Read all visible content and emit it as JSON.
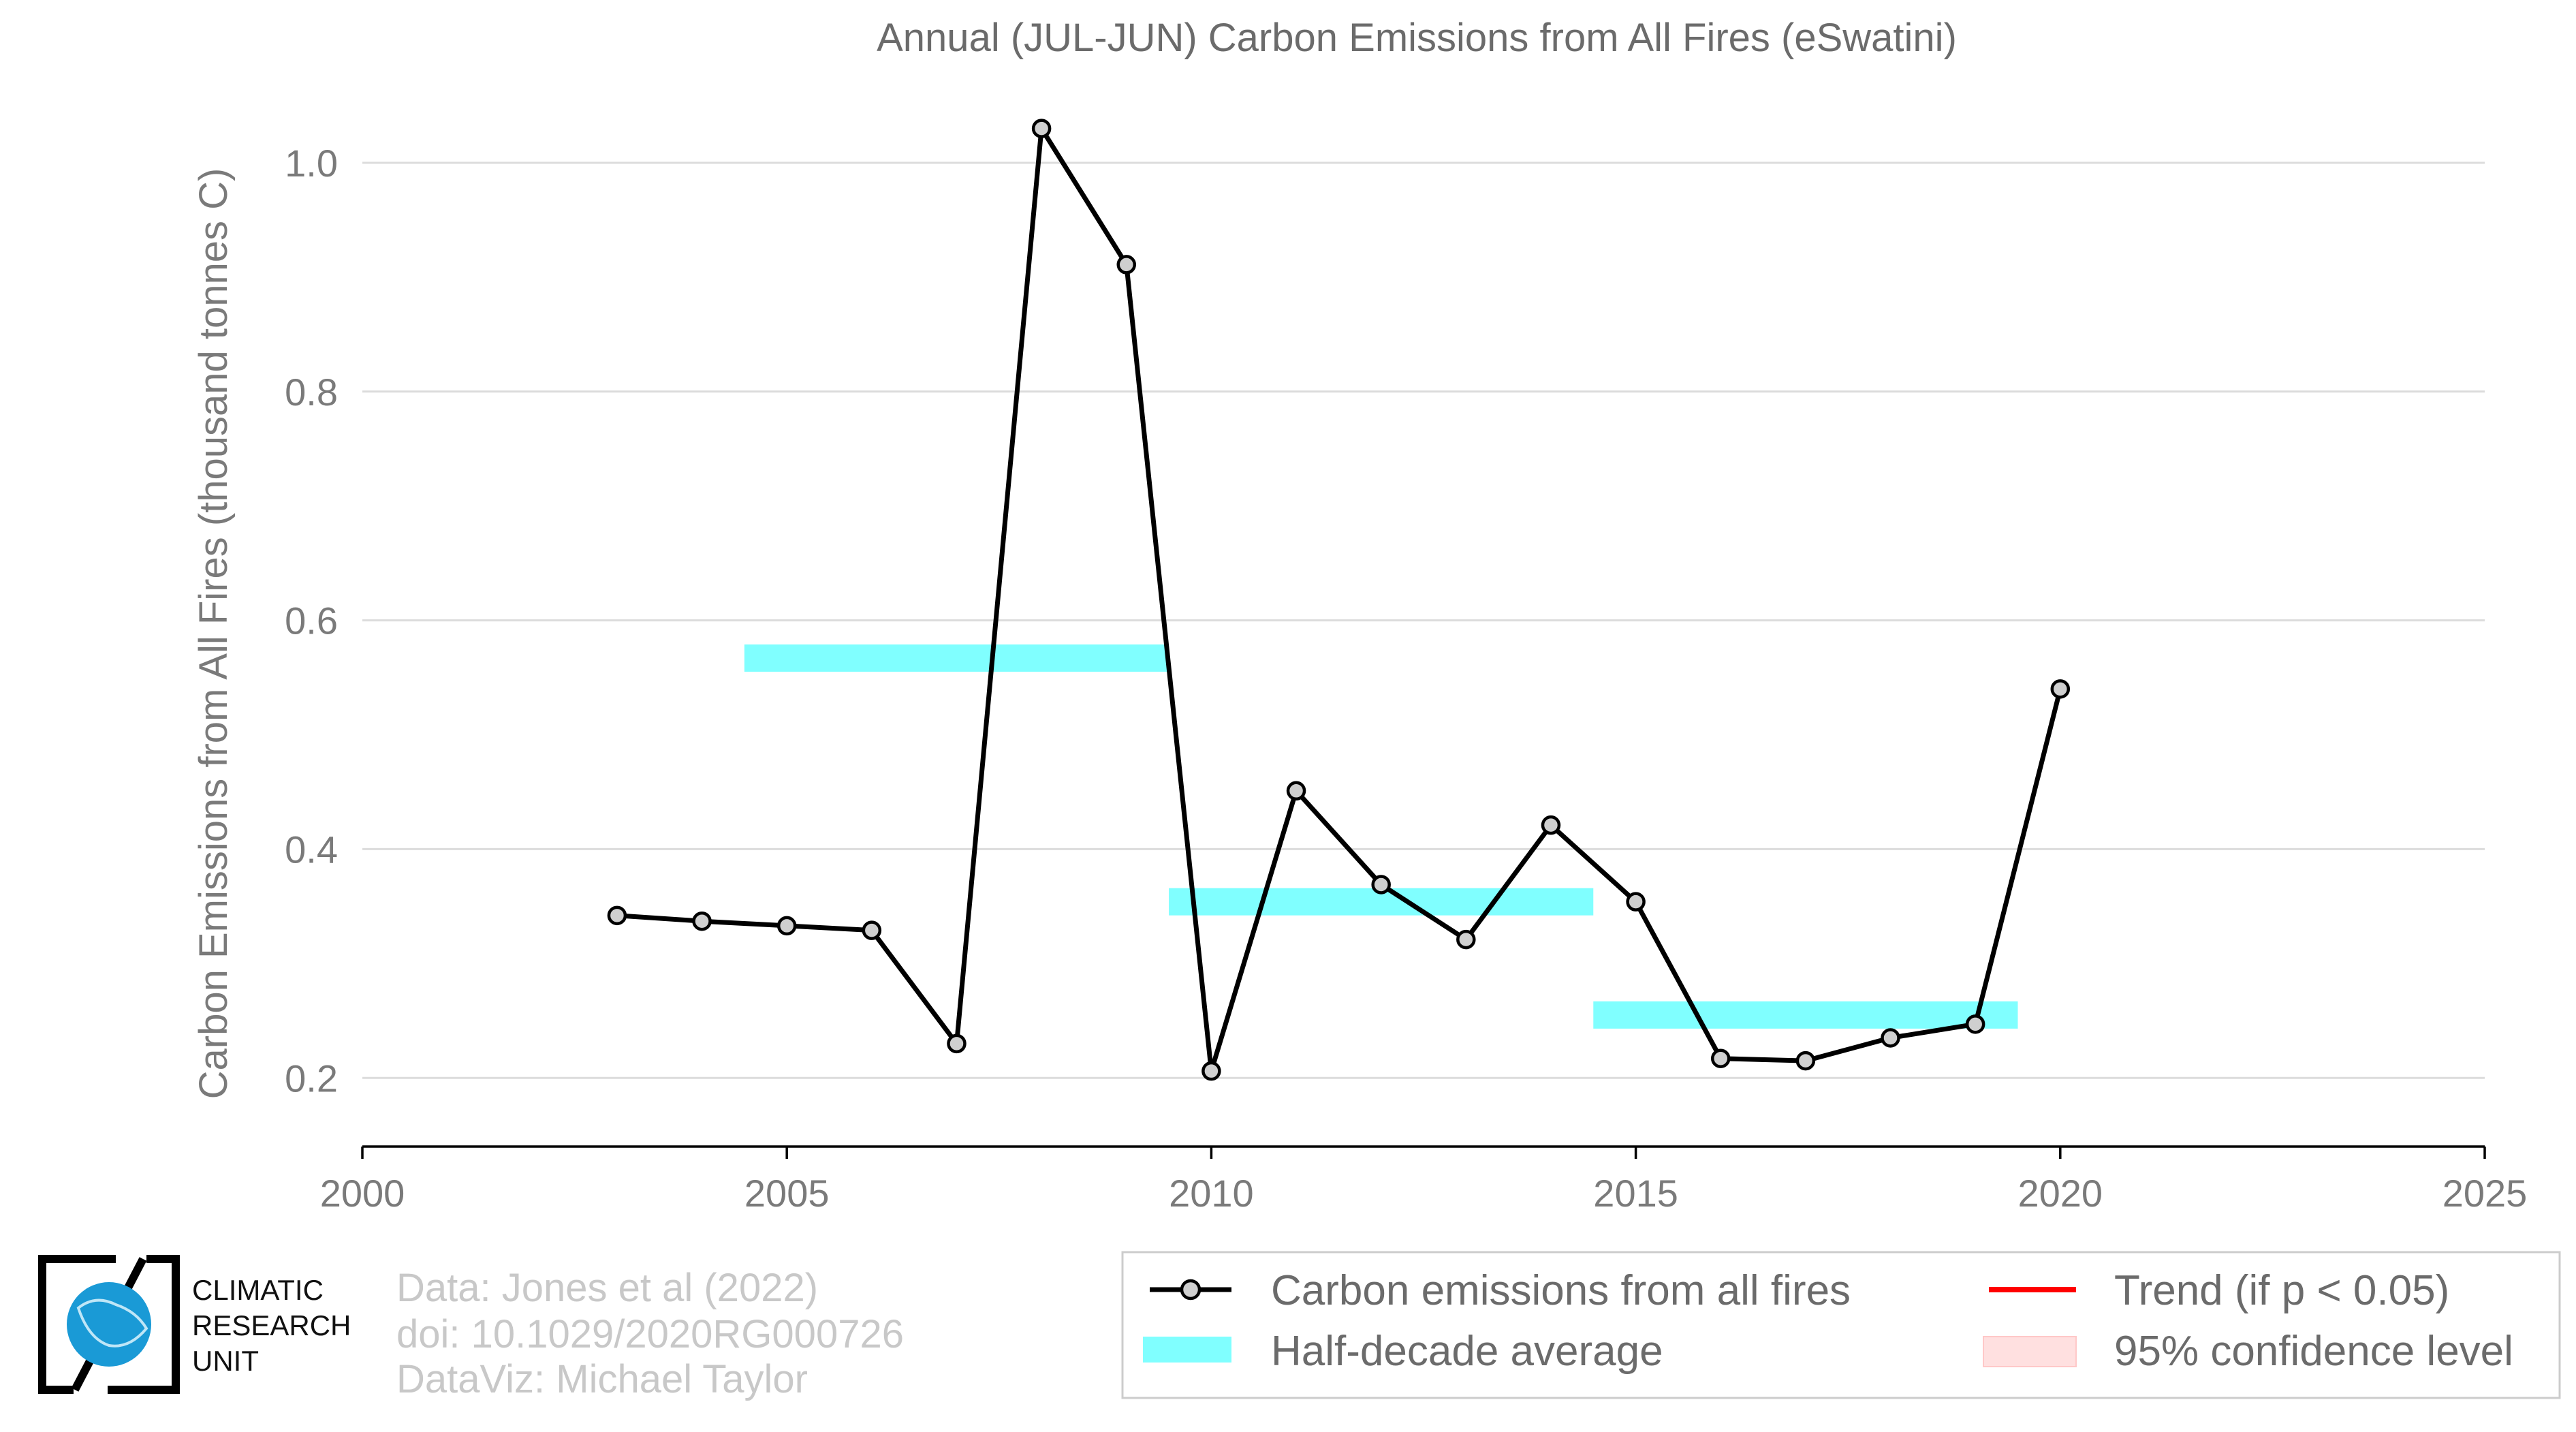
{
  "chart_data": {
    "type": "line",
    "title": "Annual (JUL-JUN) Carbon Emissions from All Fires (eSwatini)",
    "xlabel": "",
    "ylabel": "Carbon Emissions from All Fires (thousand tonnes C)",
    "xlim": [
      2000,
      2025
    ],
    "ylim": [
      0.14,
      1.05
    ],
    "xticks": [
      2000,
      2005,
      2010,
      2015,
      2020,
      2025
    ],
    "xtick_labels": [
      "2000",
      "2005",
      "2010",
      "2015",
      "2020",
      "2025"
    ],
    "yticks": [
      0.2,
      0.4,
      0.6,
      0.8,
      1.0
    ],
    "ytick_labels": [
      "0.2",
      "0.4",
      "0.6",
      "0.8",
      "1.0"
    ],
    "grid": "horizontal",
    "series": [
      {
        "name": "Carbon emissions from all fires",
        "color": "#000000",
        "x": [
          2003,
          2004,
          2005,
          2006,
          2007,
          2008,
          2009,
          2010,
          2011,
          2012,
          2013,
          2014,
          2015,
          2016,
          2017,
          2018,
          2019,
          2020
        ],
        "y": [
          0.342,
          0.337,
          0.333,
          0.329,
          0.23,
          1.03,
          0.911,
          0.206,
          0.451,
          0.369,
          0.321,
          0.421,
          0.354,
          0.217,
          0.215,
          0.235,
          0.247,
          0.54
        ]
      }
    ],
    "half_decade_average": {
      "name": "Half-decade average",
      "color": "#80ffff",
      "segments": [
        {
          "x0": 2004.5,
          "x1": 2009.5,
          "y": 0.567
        },
        {
          "x0": 2009.5,
          "x1": 2014.5,
          "y": 0.354
        },
        {
          "x0": 2014.5,
          "x1": 2019.5,
          "y": 0.255
        }
      ]
    },
    "legend": {
      "placement": "bottom-right",
      "entries": [
        {
          "label": "Carbon emissions from all fires",
          "symbol": "line-marker",
          "color": "#000000"
        },
        {
          "label": "Half-decade average",
          "symbol": "patch",
          "color": "#80ffff"
        },
        {
          "label": "Trend (if p < 0.05)",
          "symbol": "line",
          "color": "#ff0000"
        },
        {
          "label": "95% confidence level",
          "symbol": "patch",
          "color": "#ffe0e0"
        }
      ]
    }
  },
  "credits": {
    "line1": "Data: Jones et al (2022)",
    "line2": "doi: 10.1029/2020RG000726",
    "line3": "DataViz: Michael Taylor"
  },
  "logo": {
    "line1": "CLIMATIC",
    "line2": "RESEARCH",
    "line3": "UNIT",
    "globe_color": "#1a9ad6"
  }
}
